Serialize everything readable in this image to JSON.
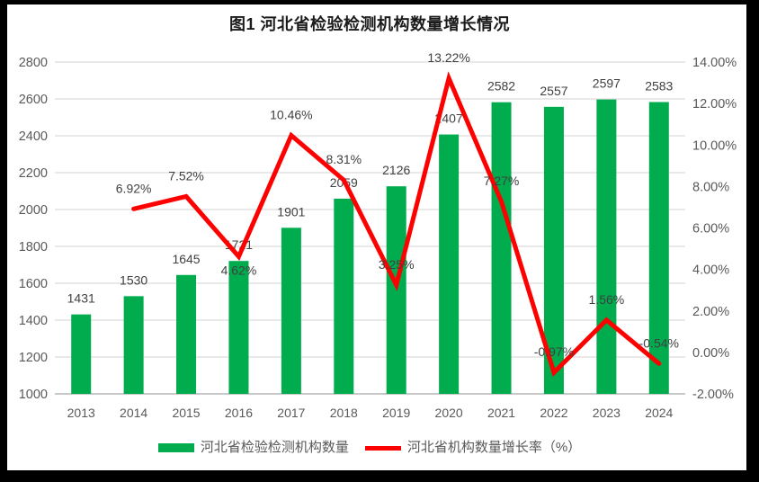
{
  "window": {
    "background": "#000000",
    "panel": "#FFFFFF"
  },
  "chart_data": {
    "type": "combo_bar_line",
    "title": "图1 河北省检验检测机构数量增长情况",
    "categories": [
      "2013",
      "2014",
      "2015",
      "2016",
      "2017",
      "2018",
      "2019",
      "2020",
      "2021",
      "2022",
      "2023",
      "2024"
    ],
    "series": [
      {
        "name": "河北省检验检测机构数量",
        "type": "bar",
        "axis": "left",
        "color": "#00AC4E",
        "values": [
          1431,
          1530,
          1645,
          1721,
          1901,
          2059,
          2126,
          2407,
          2582,
          2557,
          2597,
          2583
        ],
        "labels": [
          "1431",
          "1530",
          "1645",
          "1721",
          "1901",
          "2059",
          "2126",
          "2407",
          "2582",
          "2557",
          "2597",
          "2583"
        ]
      },
      {
        "name": "河北省机构数量增长率（%）",
        "type": "line",
        "axis": "right",
        "color": "#FF0000",
        "values": [
          null,
          6.92,
          7.52,
          4.62,
          10.46,
          8.31,
          3.25,
          13.22,
          7.27,
          -0.97,
          1.56,
          -0.54
        ],
        "labels": [
          "",
          "6.92%",
          "7.52%",
          "4.62%",
          "10.46%",
          "8.31%",
          "3.25%",
          "13.22%",
          "7.27%",
          "-0.97%",
          "1.56%",
          "-0.54%"
        ],
        "label_placement": [
          "",
          "above",
          "above",
          "below",
          "above",
          "above",
          "above",
          "above",
          "above",
          "above",
          "above",
          "above"
        ]
      }
    ],
    "left_axis": {
      "min": 1000,
      "max": 2800,
      "step": 200,
      "tick_labels": [
        "1000",
        "1200",
        "1400",
        "1600",
        "1800",
        "2000",
        "2200",
        "2400",
        "2600",
        "2800"
      ]
    },
    "right_axis": {
      "min": -2,
      "max": 14,
      "step": 2,
      "tick_labels": [
        "-2.00%",
        "0.00%",
        "2.00%",
        "4.00%",
        "6.00%",
        "8.00%",
        "10.00%",
        "12.00%",
        "14.00%"
      ]
    },
    "grid": true,
    "legend_position": "bottom",
    "colors": {
      "grid": "#DCDCDC",
      "baseline": "#C9C9C9",
      "axis_text": "#595959",
      "data_label_text": "#404040",
      "title_text": "#1A1A1A"
    }
  }
}
